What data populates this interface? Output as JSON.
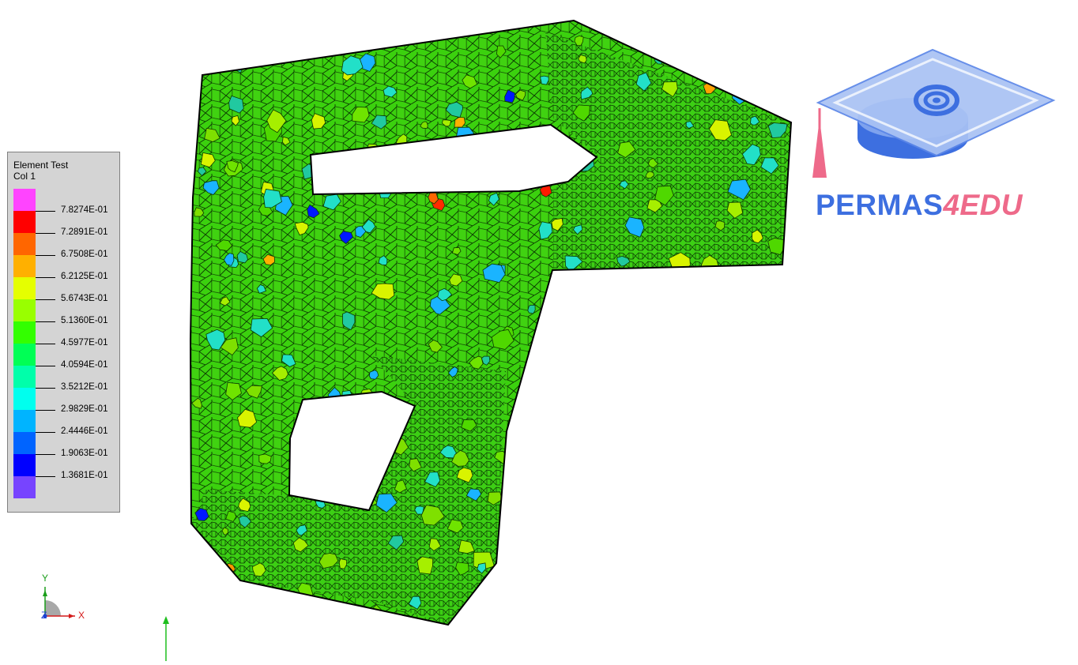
{
  "legend": {
    "title_line1": "Element Test",
    "title_line2": "Col 1",
    "colors": [
      "#ff44ff",
      "#ff0000",
      "#ff6600",
      "#ffb000",
      "#e5ff00",
      "#99ff00",
      "#33ff00",
      "#00ff55",
      "#00ffaa",
      "#00ffee",
      "#00b4ff",
      "#0064ff",
      "#0000ff",
      "#7744ff"
    ],
    "values": [
      "7.8274E-01",
      "7.2891E-01",
      "6.7508E-01",
      "6.2125E-01",
      "5.6743E-01",
      "5.1360E-01",
      "4.5977E-01",
      "4.0594E-01",
      "3.5212E-01",
      "2.9829E-01",
      "2.4446E-01",
      "1.9063E-01",
      "1.3681E-01"
    ]
  },
  "triad": {
    "x": "X",
    "y": "Y",
    "z": "Z"
  },
  "logo": {
    "part1": "PERMAS",
    "part2": "4EDU",
    "colors": {
      "blue": "#3d6fe0",
      "pink": "#ee6a8a"
    }
  },
  "mesh": {
    "edge_color": "#000000",
    "base_fill": "#33d400"
  }
}
